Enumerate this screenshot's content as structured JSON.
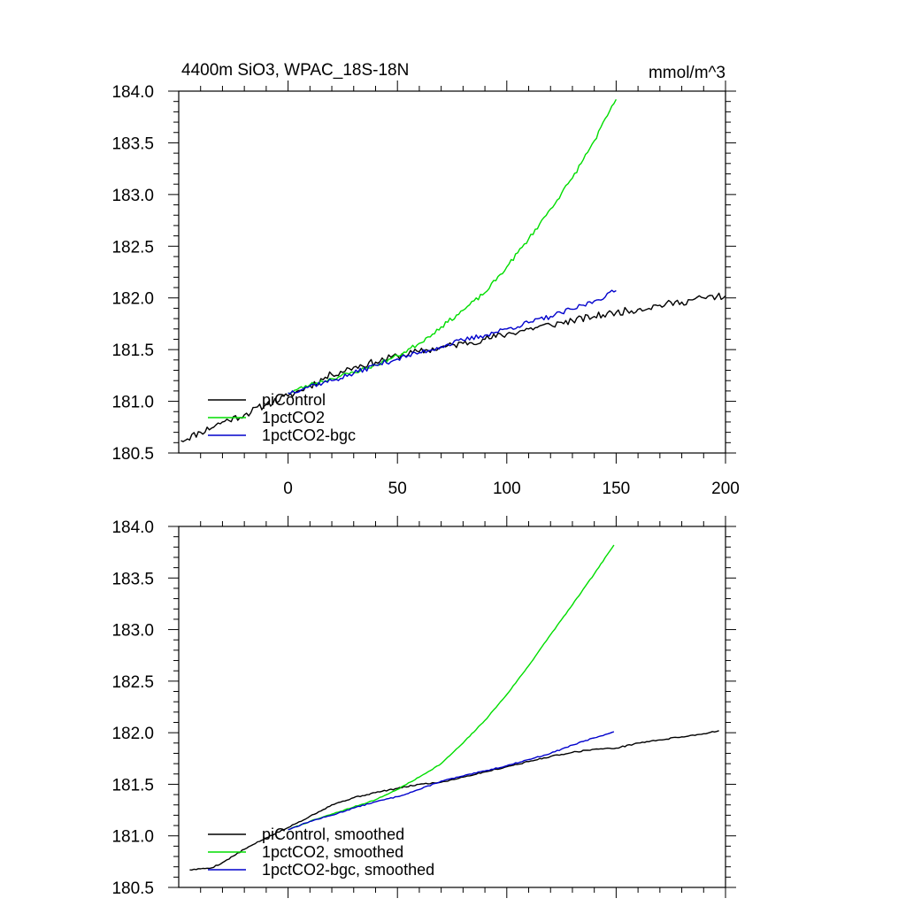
{
  "chart_data": [
    {
      "type": "line",
      "title": "4400m SiO3, WPAC_18S-18N",
      "units": "mmol/m^3",
      "xlim": [
        -50,
        200
      ],
      "ylim": [
        180.5,
        184.0
      ],
      "xticks": [
        0,
        50,
        100,
        150,
        200
      ],
      "xtick_labels": [
        "0",
        "50",
        "100",
        "150",
        "200"
      ],
      "yticks": [
        180.5,
        181.0,
        181.5,
        182.0,
        182.5,
        183.0,
        183.5,
        184.0
      ],
      "ytick_labels": [
        "180.5",
        "181.0",
        "181.5",
        "182.0",
        "182.5",
        "183.0",
        "183.5",
        "184.0"
      ],
      "grid": false,
      "legend_position": "bottom-left",
      "series": [
        {
          "name": "piControl",
          "color": "#000000",
          "noise": 0.035,
          "seed": 11,
          "x": [
            -49,
            -40,
            -30,
            -20,
            -10,
            0,
            10,
            20,
            30,
            40,
            50,
            60,
            70,
            80,
            90,
            100,
            110,
            120,
            130,
            140,
            150,
            160,
            170,
            180,
            190,
            200
          ],
          "y": [
            180.62,
            180.7,
            180.8,
            180.87,
            180.97,
            181.05,
            181.15,
            181.26,
            181.33,
            181.38,
            181.44,
            181.48,
            181.52,
            181.56,
            181.6,
            181.65,
            181.7,
            181.74,
            181.78,
            181.82,
            181.86,
            181.89,
            181.93,
            181.96,
            182.0,
            182.02
          ]
        },
        {
          "name": "1pctCO2",
          "color": "#00dd00",
          "noise": 0.02,
          "seed": 23,
          "x": [
            0,
            10,
            20,
            30,
            40,
            50,
            60,
            70,
            80,
            90,
            100,
            110,
            120,
            130,
            140,
            150
          ],
          "y": [
            181.08,
            181.16,
            181.22,
            181.28,
            181.35,
            181.44,
            181.56,
            181.72,
            181.88,
            182.05,
            182.3,
            182.57,
            182.86,
            183.16,
            183.52,
            183.92
          ]
        },
        {
          "name": "1pctCO2-bgc",
          "color": "#0000cc",
          "noise": 0.025,
          "seed": 37,
          "x": [
            0,
            10,
            20,
            30,
            40,
            50,
            60,
            70,
            80,
            90,
            100,
            110,
            120,
            130,
            140,
            150
          ],
          "y": [
            181.08,
            181.15,
            181.2,
            181.27,
            181.35,
            181.41,
            181.47,
            181.53,
            181.59,
            181.64,
            181.7,
            181.76,
            181.82,
            181.89,
            181.97,
            182.07
          ]
        }
      ]
    },
    {
      "type": "line",
      "title": "",
      "xlim": [
        -50,
        200
      ],
      "ylim": [
        180.5,
        184.0
      ],
      "xticks": [
        0,
        50,
        100,
        150,
        200
      ],
      "yticks": [
        180.5,
        181.0,
        181.5,
        182.0,
        182.5,
        183.0,
        183.5,
        184.0
      ],
      "ytick_labels": [
        "180.5",
        "181.0",
        "181.5",
        "182.0",
        "182.5",
        "183.0",
        "183.5",
        "184.0"
      ],
      "grid": false,
      "legend_position": "bottom-left",
      "series": [
        {
          "name": "piControl, smoothed",
          "color": "#000000",
          "noise": 0.006,
          "seed": 5,
          "x": [
            -45,
            -40,
            -35,
            -30,
            -20,
            -10,
            0,
            10,
            20,
            30,
            40,
            50,
            60,
            70,
            80,
            90,
            100,
            110,
            120,
            130,
            140,
            150,
            160,
            170,
            180,
            190,
            197
          ],
          "y": [
            180.67,
            180.68,
            180.69,
            180.74,
            180.87,
            180.98,
            181.08,
            181.19,
            181.3,
            181.37,
            181.42,
            181.46,
            181.5,
            181.52,
            181.57,
            181.62,
            181.67,
            181.72,
            181.77,
            181.81,
            181.84,
            181.85,
            181.9,
            181.93,
            181.96,
            181.99,
            182.02
          ]
        },
        {
          "name": "1pctCO2, smoothed",
          "color": "#00dd00",
          "noise": 0.004,
          "seed": 7,
          "x": [
            0,
            10,
            20,
            30,
            40,
            50,
            60,
            70,
            80,
            90,
            100,
            110,
            120,
            130,
            140,
            149
          ],
          "y": [
            181.06,
            181.14,
            181.21,
            181.28,
            181.35,
            181.45,
            181.57,
            181.7,
            181.9,
            182.12,
            182.37,
            182.65,
            182.95,
            183.24,
            183.54,
            183.82
          ]
        },
        {
          "name": "1pctCO2-bgc, smoothed",
          "color": "#0000cc",
          "noise": 0.005,
          "seed": 13,
          "x": [
            0,
            10,
            20,
            30,
            40,
            50,
            60,
            70,
            80,
            90,
            100,
            110,
            120,
            130,
            140,
            149
          ],
          "y": [
            181.06,
            181.14,
            181.2,
            181.27,
            181.33,
            181.38,
            181.45,
            181.53,
            181.58,
            181.63,
            181.68,
            181.74,
            181.8,
            181.88,
            181.95,
            182.01
          ]
        }
      ]
    }
  ]
}
